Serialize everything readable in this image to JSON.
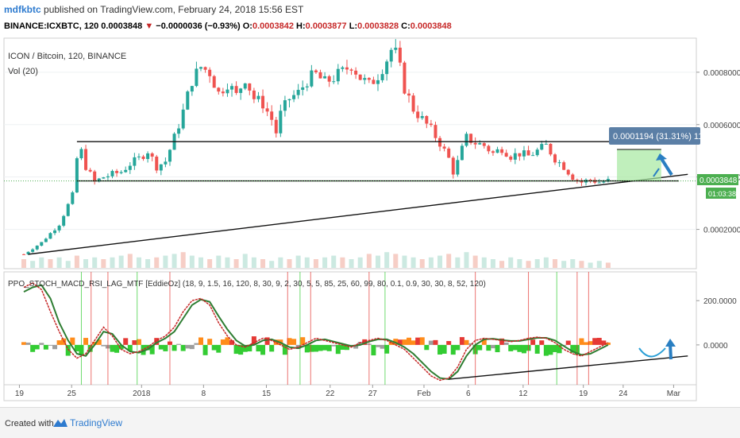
{
  "header": {
    "user": "mdfkbtc",
    "published_text": "published on TradingView.com, February 24, 2018 15:56 EST",
    "symbol": "BINANCE:ICXBTC, 120",
    "last": "0.0003848",
    "change": "−0.0000036 (−0.93%)",
    "o_label": "O:",
    "o_value": "0.0003842",
    "h_label": "H:",
    "h_value": "0.0003877",
    "l_label": "L:",
    "l_value": "0.0003828",
    "c_label": "C:",
    "c_value": "0.0003848"
  },
  "legend": {
    "main_title": "ICON / Bitcoin, 120, BINANCE",
    "volume": "Vol (20)",
    "indicator": "PPO_STOCH_MACD_RSI_LAG_MTF [EddieOz] (18, 9, 1.5, 16, 120, 8, 30, 9, 2, 30, 5, 5, 85, 25, 60, 99, 80, 0.1, 0.9, 30, 30, 8, 52, 120)"
  },
  "price_labels": {
    "current": "0.0003848",
    "countdown": "01:03:38",
    "measure": "0.0001194 (31.31%) 11"
  },
  "footer": {
    "created_with": "Created with",
    "brand": "TradingView"
  },
  "colors": {
    "up": "#26a69a",
    "down": "#ef5350",
    "green_bar": "#4caf50",
    "measure_label": "#5b7fa6",
    "osc_green": "#33cc33",
    "osc_red": "#e53935",
    "osc_orange": "#ff8c1a",
    "osc_gray": "#9e9e9e"
  },
  "chart_data": [
    {
      "type": "candlestick",
      "title": "ICON / Bitcoin, 120, BINANCE",
      "x_tick_labels": [
        "19",
        "25",
        "2018",
        "8",
        "15",
        "22",
        "27",
        "Feb",
        "6",
        "12",
        "19",
        "24",
        "Mar"
      ],
      "y_ticks": [
        0.0002,
        0.0004,
        0.0006,
        0.0008
      ],
      "y_tick_labels": [
        "0.0002000",
        "0.0004000",
        "0.0006000",
        "0.0008000"
      ],
      "ylim": [
        5e-05,
        0.00093
      ],
      "close_path": [
        {
          "day": 0,
          "close": 0.000105
        },
        {
          "day": 2,
          "close": 0.00015
        },
        {
          "day": 4,
          "close": 0.00022
        },
        {
          "day": 5.5,
          "close": 0.00033
        },
        {
          "day": 6,
          "close": 0.00047
        },
        {
          "day": 6.3,
          "close": 0.00052
        },
        {
          "day": 7,
          "close": 0.00044
        },
        {
          "day": 8,
          "close": 0.00038
        },
        {
          "day": 9,
          "close": 0.0004
        },
        {
          "day": 10,
          "close": 0.00041
        },
        {
          "day": 11,
          "close": 0.00042
        },
        {
          "day": 12,
          "close": 0.00045
        },
        {
          "day": 13,
          "close": 0.00047
        },
        {
          "day": 14,
          "close": 0.0005
        },
        {
          "day": 15,
          "close": 0.00044
        },
        {
          "day": 16,
          "close": 0.00046
        },
        {
          "day": 17,
          "close": 0.00055
        },
        {
          "day": 18,
          "close": 0.00065
        },
        {
          "day": 19,
          "close": 0.00077
        },
        {
          "day": 20,
          "close": 0.00082
        },
        {
          "day": 21,
          "close": 0.0008
        },
        {
          "day": 22,
          "close": 0.00072
        },
        {
          "day": 23,
          "close": 0.00076
        },
        {
          "day": 24,
          "close": 0.00071
        },
        {
          "day": 25,
          "close": 0.00078
        },
        {
          "day": 26,
          "close": 0.0007
        },
        {
          "day": 27,
          "close": 0.00068
        },
        {
          "day": 28,
          "close": 0.00062
        },
        {
          "day": 28.5,
          "close": 0.00057
        },
        {
          "day": 29,
          "close": 0.00064
        },
        {
          "day": 30,
          "close": 0.0007
        },
        {
          "day": 31,
          "close": 0.00072
        },
        {
          "day": 32,
          "close": 0.00077
        },
        {
          "day": 33,
          "close": 0.00079
        },
        {
          "day": 34,
          "close": 0.00076
        },
        {
          "day": 35,
          "close": 0.00078
        },
        {
          "day": 36,
          "close": 0.0008
        },
        {
          "day": 37,
          "close": 0.00083
        },
        {
          "day": 38,
          "close": 0.00078
        },
        {
          "day": 39,
          "close": 0.00075
        },
        {
          "day": 40,
          "close": 0.00079
        },
        {
          "day": 41,
          "close": 0.00085
        },
        {
          "day": 41.7,
          "close": 0.0009
        },
        {
          "day": 42.3,
          "close": 0.00084
        },
        {
          "day": 43,
          "close": 0.00074
        },
        {
          "day": 44,
          "close": 0.00066
        },
        {
          "day": 45,
          "close": 0.00062
        },
        {
          "day": 46,
          "close": 0.00058
        },
        {
          "day": 47,
          "close": 0.00053
        },
        {
          "day": 48,
          "close": 0.00047
        },
        {
          "day": 48.6,
          "close": 0.00041
        },
        {
          "day": 49.2,
          "close": 0.00048
        },
        {
          "day": 50,
          "close": 0.00055
        },
        {
          "day": 51,
          "close": 0.00053
        },
        {
          "day": 52,
          "close": 0.00052
        },
        {
          "day": 53,
          "close": 0.00049
        },
        {
          "day": 54,
          "close": 0.00051
        },
        {
          "day": 55,
          "close": 0.00048
        },
        {
          "day": 56,
          "close": 0.00049
        },
        {
          "day": 57,
          "close": 0.00048
        },
        {
          "day": 58,
          "close": 0.0005
        },
        {
          "day": 59,
          "close": 0.00052
        },
        {
          "day": 60,
          "close": 0.00047
        },
        {
          "day": 61,
          "close": 0.00044
        },
        {
          "day": 62,
          "close": 0.0004
        },
        {
          "day": 63,
          "close": 0.00038
        },
        {
          "day": 64,
          "close": 0.00039
        },
        {
          "day": 65,
          "close": 0.00038
        },
        {
          "day": 66,
          "close": 0.000385
        }
      ],
      "volume": [
        5,
        4,
        6,
        5,
        6,
        4,
        7,
        5,
        6,
        5,
        6,
        7,
        8,
        6,
        5,
        6,
        7,
        8,
        9,
        7,
        6,
        5,
        7,
        6,
        5,
        8,
        6,
        5,
        4,
        6,
        5,
        7,
        6,
        5,
        6,
        7,
        6,
        5,
        6,
        8,
        7,
        9,
        8,
        7,
        6,
        5,
        6,
        7,
        8,
        6,
        9,
        7,
        6,
        5,
        4,
        6,
        5,
        4,
        5,
        6,
        5,
        4,
        5,
        4,
        3,
        4,
        3
      ],
      "annotations": [
        {
          "type": "horizontal_line",
          "price": 0.000535,
          "from_day": 6,
          "to_day": 74
        },
        {
          "type": "horizontal_line",
          "price": 0.000385,
          "from_day": 6,
          "to_day": 74
        },
        {
          "type": "trend_line",
          "from": {
            "day": 0.5,
            "price": 0.000105
          },
          "to": {
            "day": 75,
            "price": 0.00041
          }
        },
        {
          "type": "price_range",
          "from_day": 67,
          "to_day": 72,
          "low": 0.000385,
          "high": 0.000505,
          "label": "0.0001194 (31.31%) 11"
        }
      ]
    },
    {
      "type": "oscillator",
      "title": "PPO_STOCH_MACD_RSI_LAG_MTF [EddieOz] (18, 9, 1.5, 16, 120, 8, 30, 9, 2, 30, 5, 5, 85, 25, 60, 99, 80, 0.1, 0.9, 30, 30, 8, 52, 120)",
      "y_ticks": [
        0,
        200
      ],
      "y_tick_labels": [
        "0.0000",
        "200.0000"
      ],
      "ylim": [
        -180,
        330
      ],
      "series": [
        {
          "values_red": [
            260,
            280,
            250,
            150,
            60,
            -20,
            -60,
            -40,
            20,
            80,
            40,
            -20,
            -40,
            -30,
            -10,
            20,
            40,
            80,
            150,
            200,
            210,
            180,
            100,
            40,
            0,
            -10,
            10,
            30,
            20,
            0,
            -20,
            -10,
            10,
            30,
            20,
            10,
            0,
            -10,
            10,
            20,
            30,
            20,
            0,
            -20,
            -60,
            -100,
            -140,
            -160,
            -150,
            -100,
            -20,
            20,
            30,
            25,
            20,
            15,
            20,
            30,
            35,
            30,
            10,
            -20,
            -40,
            -50,
            -30,
            -10,
            10
          ]
        },
        {
          "values_green": [
            240,
            260,
            270,
            210,
            100,
            20,
            -40,
            -50,
            0,
            60,
            50,
            0,
            -30,
            -35,
            -20,
            10,
            30,
            60,
            120,
            180,
            205,
            195,
            130,
            70,
            20,
            -5,
            0,
            20,
            25,
            10,
            -10,
            -15,
            0,
            20,
            25,
            15,
            5,
            -5,
            0,
            15,
            25,
            25,
            10,
            -10,
            -40,
            -80,
            -120,
            -150,
            -155,
            -120,
            -50,
            0,
            25,
            28,
            22,
            18,
            18,
            25,
            32,
            32,
            20,
            -5,
            -30,
            -45,
            -40,
            -20,
            0
          ]
        }
      ],
      "trend_line": {
        "from": {
          "day": 48,
          "value": -155
        },
        "to": {
          "day": 75,
          "value": -50
        }
      }
    }
  ]
}
